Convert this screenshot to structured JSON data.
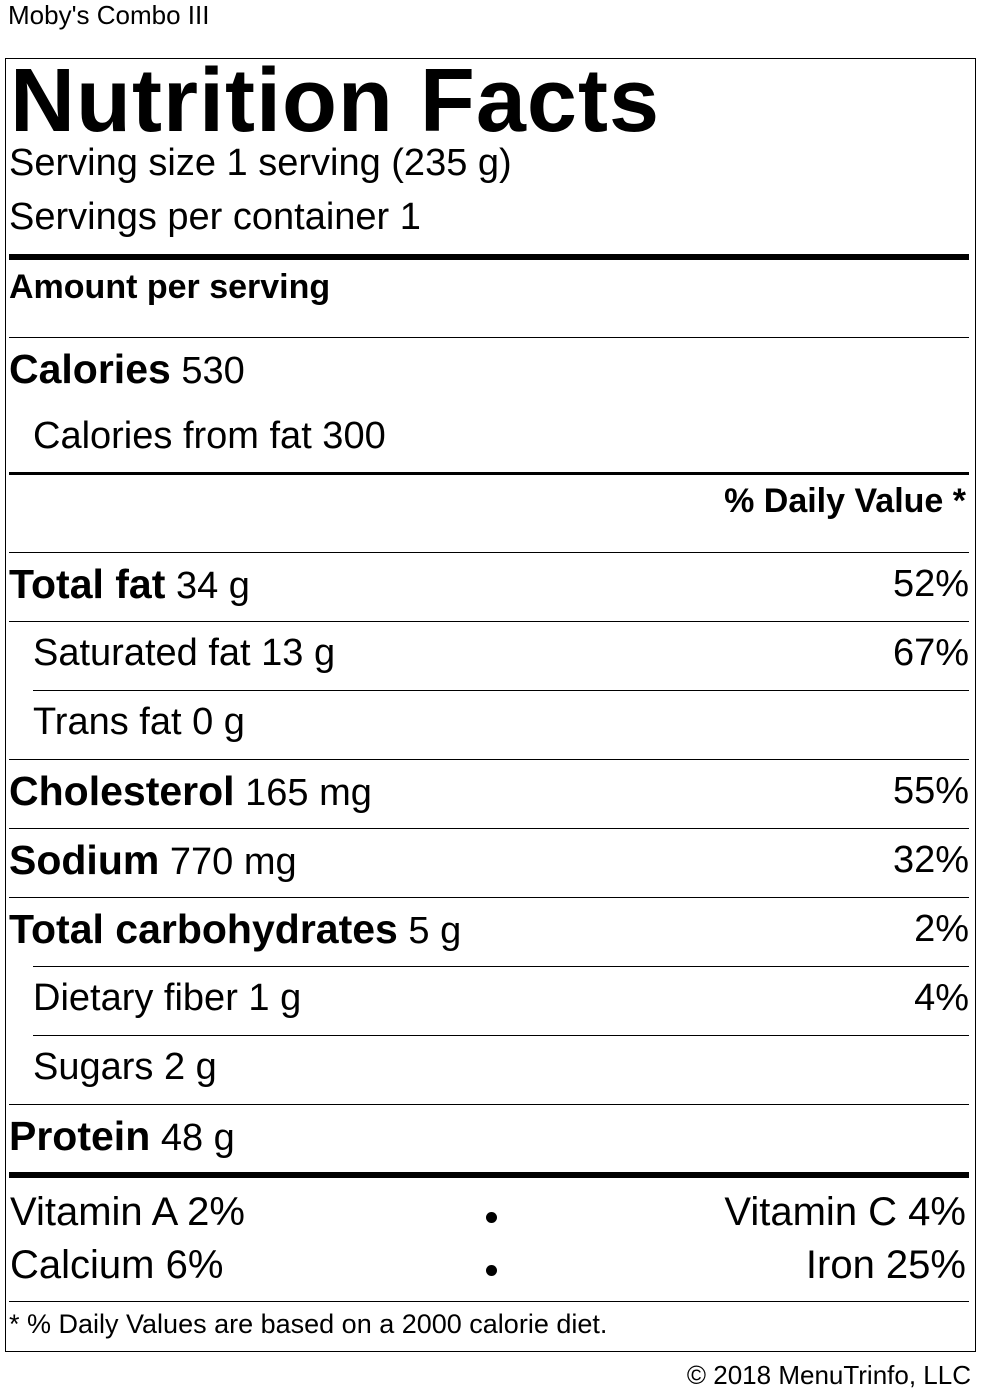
{
  "item_name": "Moby's Combo III",
  "label": {
    "title": "Nutrition Facts",
    "serving_size": "Serving size 1 serving (235 g)",
    "servings_per_container": "Servings per container 1",
    "amount_per_serving": "Amount per serving",
    "calories_label": "Calories",
    "calories_value": "530",
    "calories_from_fat": "Calories from fat 300",
    "daily_value_header": "% Daily Value *",
    "nutrients": [
      {
        "name": "Total fat",
        "amount": "34 g",
        "dv": "52%"
      },
      {
        "name": "Saturated fat",
        "amount": "13 g",
        "dv": "67%"
      },
      {
        "name": "Trans fat",
        "amount": "0 g",
        "dv": ""
      },
      {
        "name": "Cholesterol",
        "amount": "165 mg",
        "dv": "55%"
      },
      {
        "name": "Sodium",
        "amount": "770 mg",
        "dv": "32%"
      },
      {
        "name": "Total carbohydrates",
        "amount": "5 g",
        "dv": "2%"
      },
      {
        "name": "Dietary fiber",
        "amount": "1 g",
        "dv": "4%"
      },
      {
        "name": "Sugars",
        "amount": "2 g",
        "dv": ""
      },
      {
        "name": "Protein",
        "amount": "48 g",
        "dv": ""
      }
    ],
    "vitamins": {
      "vitamin_a": "Vitamin A 2%",
      "vitamin_c": "Vitamin C 4%",
      "calcium": "Calcium 6%",
      "iron": "Iron 25%"
    },
    "footnote": "* % Daily Values are based on a 2000 calorie diet."
  },
  "copyright": "© 2018 MenuTrinfo, LLC"
}
